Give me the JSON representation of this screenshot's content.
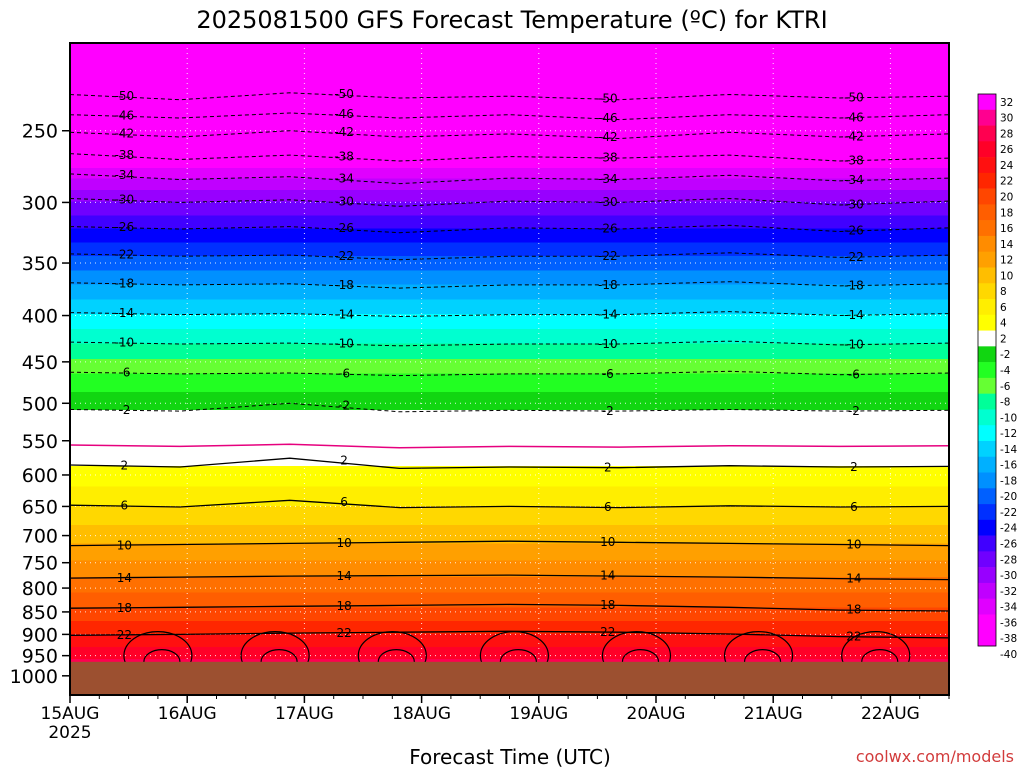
{
  "chart_data": {
    "type": "heatmap",
    "title": "2025081500 GFS Forecast Temperature (ºC) for KTRI",
    "xlabel": "Forecast Time (UTC)",
    "ylabel": "",
    "watermark": "coolwx.com/models",
    "x_ticks": [
      {
        "label": "15AUG",
        "sublabel": "2025",
        "hours": 0
      },
      {
        "label": "16AUG",
        "hours": 24
      },
      {
        "label": "17AUG",
        "hours": 48
      },
      {
        "label": "18AUG",
        "hours": 72
      },
      {
        "label": "19AUG",
        "hours": 96
      },
      {
        "label": "20AUG",
        "hours": 120
      },
      {
        "label": "21AUG",
        "hours": 144
      },
      {
        "label": "22AUG",
        "hours": 168
      }
    ],
    "x_range_hours": [
      0,
      180
    ],
    "y_axis": {
      "units": "hPa",
      "scale": "log",
      "reversed": true,
      "range": [
        1050,
        200
      ],
      "ticks": [
        250,
        300,
        350,
        400,
        450,
        500,
        550,
        600,
        650,
        700,
        750,
        800,
        850,
        900,
        950,
        1000
      ]
    },
    "ground_level_hpa": 965,
    "ground_color": "#9c5030",
    "grid": true,
    "colorbar": {
      "placement": "right",
      "labels": [
        32,
        30,
        28,
        26,
        24,
        22,
        20,
        18,
        16,
        14,
        12,
        10,
        8,
        6,
        4,
        2,
        -2,
        -4,
        -6,
        -8,
        -10,
        -12,
        -14,
        -16,
        -18,
        -20,
        -22,
        -24,
        -26,
        -28,
        -30,
        -32,
        -34,
        -36,
        -38,
        -40
      ],
      "colors": [
        "#ff00ff",
        "#ff0090",
        "#ff0050",
        "#ff0028",
        "#ff1010",
        "#ff2600",
        "#ff4600",
        "#ff5e00",
        "#ff7000",
        "#ff8c00",
        "#ffa000",
        "#ffbe00",
        "#ffd800",
        "#ffee00",
        "#ffff00",
        "#ffffff",
        "#11d611",
        "#22ff22",
        "#66ff33",
        "#00ff99",
        "#00ffd0",
        "#00ffff",
        "#00d2ff",
        "#00b0ff",
        "#0090ff",
        "#0060ff",
        "#0030ff",
        "#0000ff",
        "#4000ff",
        "#7000ff",
        "#9800ff",
        "#c000ff",
        "#e000ff",
        "#ff00ff",
        "#ff00ff"
      ]
    },
    "contours_dashed": [
      {
        "level": -50,
        "p": [
          228,
          231,
          227,
          230,
          229,
          231,
          228,
          230,
          229
        ]
      },
      {
        "level": -46,
        "p": [
          240,
          242,
          239,
          242,
          240,
          243,
          240,
          242,
          240
        ]
      },
      {
        "level": -42,
        "p": [
          251,
          254,
          250,
          254,
          252,
          255,
          251,
          254,
          252
        ]
      },
      {
        "level": -38,
        "p": [
          265,
          269,
          266,
          270,
          267,
          268,
          266,
          270,
          268
        ]
      },
      {
        "level": -34,
        "p": [
          279,
          283,
          281,
          286,
          282,
          283,
          280,
          284,
          282
        ]
      },
      {
        "level": -30,
        "p": [
          297,
          300,
          298,
          303,
          299,
          300,
          297,
          302,
          299
        ]
      },
      {
        "level": -26,
        "p": [
          319,
          321,
          319,
          324,
          320,
          321,
          318,
          323,
          320
        ]
      },
      {
        "level": -22,
        "p": [
          342,
          344,
          343,
          347,
          344,
          344,
          341,
          345,
          343
        ]
      },
      {
        "level": -18,
        "p": [
          368,
          370,
          369,
          373,
          370,
          370,
          367,
          371,
          369
        ]
      },
      {
        "level": -14,
        "p": [
          397,
          399,
          398,
          401,
          399,
          399,
          396,
          400,
          398
        ]
      },
      {
        "level": -10,
        "p": [
          428,
          430,
          429,
          432,
          430,
          430,
          427,
          431,
          429
        ]
      },
      {
        "level": -6,
        "p": [
          462,
          464,
          463,
          466,
          464,
          464,
          461,
          465,
          463
        ]
      },
      {
        "level": -2,
        "p": [
          508,
          510,
          500,
          511,
          509,
          510,
          508,
          510,
          509
        ]
      }
    ],
    "contours_solid": [
      {
        "level": 2,
        "p": [
          585,
          588,
          575,
          590,
          588,
          589,
          586,
          588,
          587
        ]
      },
      {
        "level": 6,
        "p": [
          648,
          651,
          640,
          652,
          650,
          652,
          649,
          651,
          650
        ]
      },
      {
        "level": 10,
        "p": [
          718,
          716,
          714,
          712,
          710,
          712,
          714,
          716,
          718
        ]
      },
      {
        "level": 14,
        "p": [
          780,
          778,
          776,
          775,
          774,
          776,
          778,
          781,
          783
        ]
      },
      {
        "level": 18,
        "p": [
          842,
          840,
          838,
          836,
          834,
          836,
          840,
          846,
          848
        ]
      },
      {
        "level": 22,
        "p": [
          902,
          900,
          897,
          895,
          893,
          895,
          899,
          905,
          908
        ]
      }
    ],
    "contour_freezing": {
      "level": 0,
      "color": "#e6007e",
      "p": [
        556,
        558,
        555,
        560,
        558,
        559,
        557,
        558,
        557
      ]
    }
  }
}
